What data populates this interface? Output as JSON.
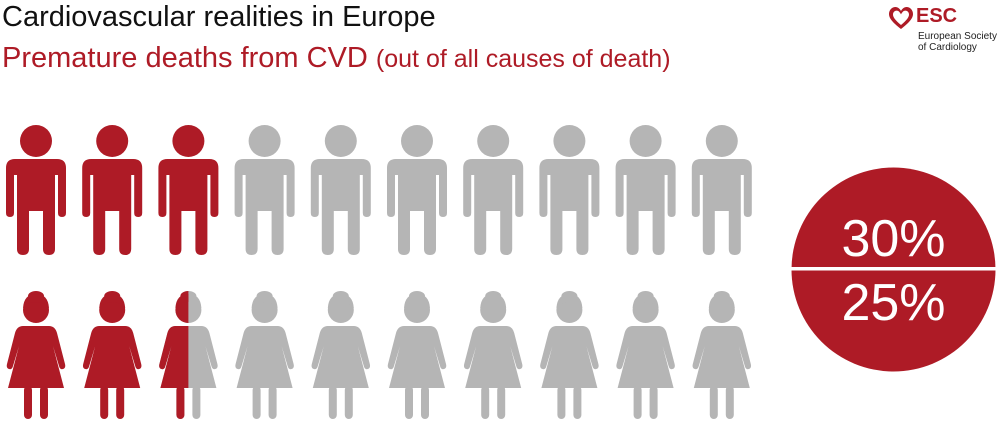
{
  "header": {
    "title": "Cardiovascular realities in Europe",
    "subtitle_main": "Premature deaths from CVD",
    "subtitle_note": "(out of all causes of death)"
  },
  "logo": {
    "short": "ESC",
    "line1": "European Society",
    "line2": "of Cardiology",
    "icon": "heart-icon"
  },
  "colors": {
    "accent": "#ae1b26",
    "inactive": "#b5b5b5"
  },
  "chart_data": {
    "type": "pictogram",
    "total_icons_per_row": 10,
    "series": [
      {
        "icon": "man-icon",
        "value_percent": 30,
        "label": "30%"
      },
      {
        "icon": "woman-icon",
        "value_percent": 25,
        "label": "25%"
      }
    ]
  }
}
